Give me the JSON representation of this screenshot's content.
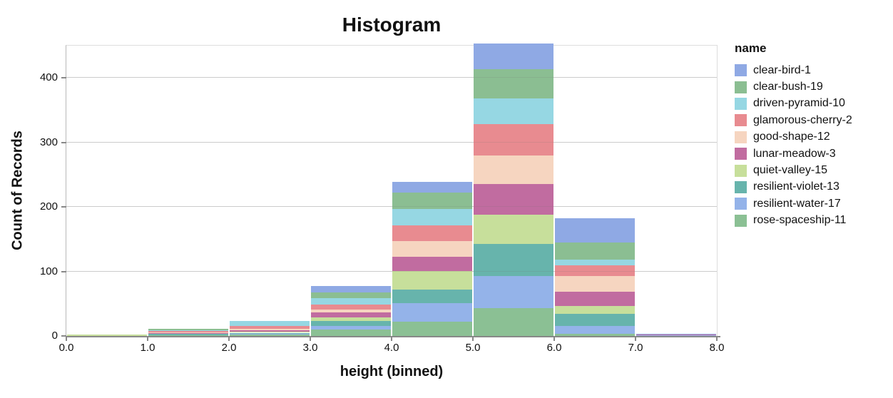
{
  "title": "Histogram",
  "axes": {
    "x": {
      "title": "height (binned)",
      "tick_labels": [
        "0.0",
        "1.0",
        "2.0",
        "3.0",
        "4.0",
        "5.0",
        "6.0",
        "7.0",
        "8.0"
      ],
      "domain": [
        0,
        8
      ]
    },
    "y": {
      "title": "Count of Records",
      "tick_values": [
        0,
        100,
        200,
        300,
        400
      ],
      "domain": [
        0,
        450
      ],
      "grid": true
    }
  },
  "legend": {
    "title": "name",
    "position": "right"
  },
  "colors": {
    "grid": "#dddddd",
    "axis_domain": "#888888",
    "view_border": "#dddddd",
    "text": "#111111"
  },
  "chart_data": {
    "type": "bar",
    "subtype": "stacked-histogram",
    "title": "Histogram",
    "xlabel": "height (binned)",
    "ylabel": "Count of Records",
    "xlim": [
      0,
      8
    ],
    "ylim": [
      0,
      450
    ],
    "grid": true,
    "legend_position": "right",
    "stack_order_bottom_to_top": "reverse of legend order",
    "bin_edges": [
      0,
      1,
      2,
      3,
      4,
      5,
      6,
      7,
      8
    ],
    "categories": [
      "0-1",
      "1-2",
      "2-3",
      "3-4",
      "4-5",
      "5-6",
      "6-7",
      "7-8"
    ],
    "bin_totals": [
      2,
      11,
      23,
      77,
      239,
      453,
      182,
      3
    ],
    "series": [
      {
        "name": "clear-bird-1",
        "color": "#8FA9E4",
        "values": [
          0,
          0,
          0,
          9,
          17,
          39,
          37,
          1
        ]
      },
      {
        "name": "clear-bush-19",
        "color": "#8BBE92",
        "values": [
          0,
          2,
          0,
          9,
          25,
          46,
          27,
          0
        ]
      },
      {
        "name": "driven-pyramid-10",
        "color": "#96D7E3",
        "values": [
          0,
          1,
          7,
          10,
          26,
          40,
          9,
          0
        ]
      },
      {
        "name": "glamorous-cherry-2",
        "color": "#E88B90",
        "values": [
          0,
          2,
          5,
          8,
          24,
          48,
          16,
          0
        ]
      },
      {
        "name": "good-shape-12",
        "color": "#F6D5C0",
        "values": [
          0,
          1,
          2,
          5,
          24,
          44,
          24,
          0
        ]
      },
      {
        "name": "lunar-meadow-3",
        "color": "#C16CA0",
        "values": [
          0,
          1,
          2,
          7,
          22,
          48,
          23,
          1
        ]
      },
      {
        "name": "quiet-valley-15",
        "color": "#C7DF9B",
        "values": [
          2,
          1,
          2,
          6,
          29,
          45,
          12,
          0
        ]
      },
      {
        "name": "resilient-violet-13",
        "color": "#67B4AC",
        "values": [
          0,
          2,
          1,
          8,
          21,
          50,
          18,
          0
        ]
      },
      {
        "name": "resilient-water-17",
        "color": "#94B3E9",
        "values": [
          0,
          0,
          2,
          5,
          29,
          50,
          13,
          1
        ]
      },
      {
        "name": "rose-spaceship-11",
        "color": "#8BC094",
        "values": [
          0,
          1,
          2,
          10,
          22,
          43,
          3,
          0
        ]
      }
    ]
  }
}
